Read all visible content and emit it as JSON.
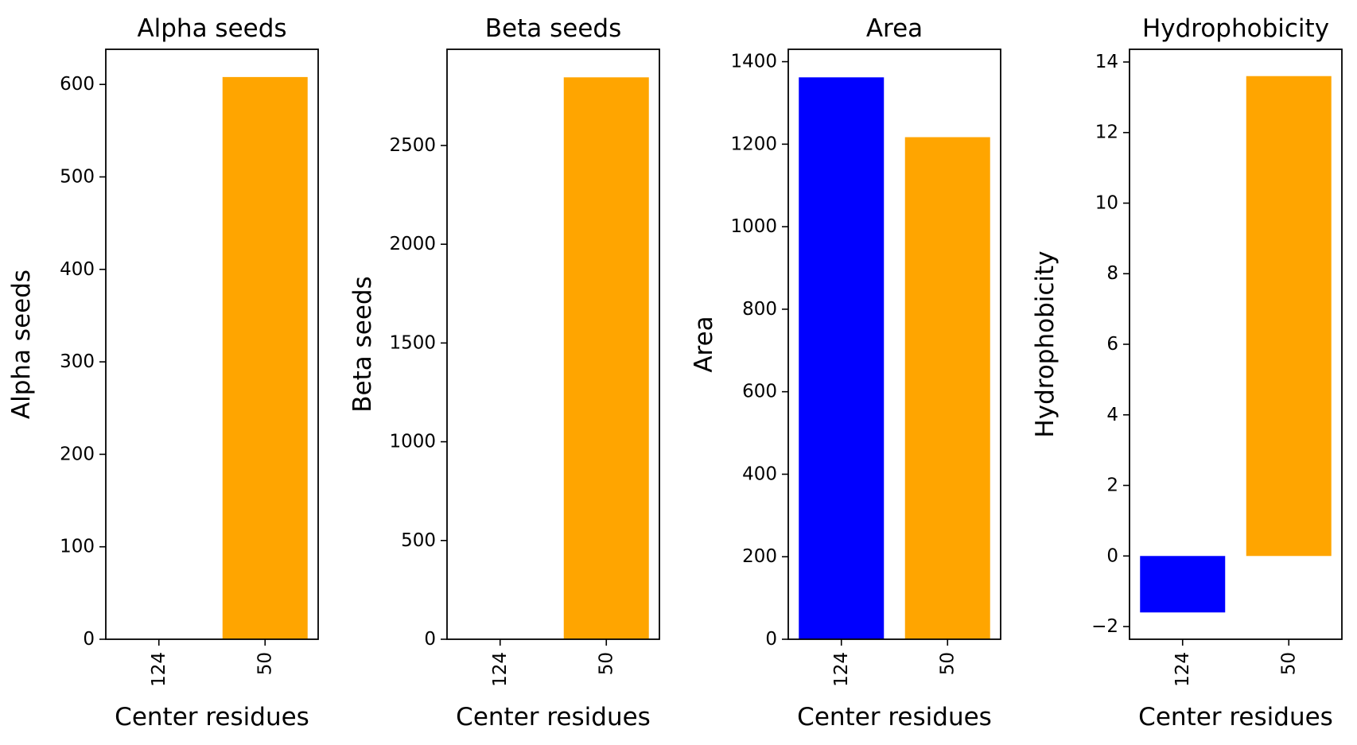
{
  "chart_data": [
    {
      "type": "bar",
      "title": "Alpha seeds",
      "xlabel": "Center residues",
      "ylabel": "Alpha seeds",
      "categories": [
        "124",
        "50"
      ],
      "values": [
        0,
        608
      ],
      "colors": [
        "#0000ff",
        "#ffa500"
      ],
      "ylim": [
        0,
        638
      ],
      "yticks": [
        0,
        100,
        200,
        300,
        400,
        500,
        600
      ],
      "ytick_labels": [
        "0",
        "100",
        "200",
        "300",
        "400",
        "500",
        "600"
      ],
      "grid": false
    },
    {
      "type": "bar",
      "title": "Beta seeds",
      "xlabel": "Center residues",
      "ylabel": "Beta seeds",
      "categories": [
        "124",
        "50"
      ],
      "values": [
        0,
        2845
      ],
      "colors": [
        "#0000ff",
        "#ffa500"
      ],
      "ylim": [
        0,
        2987
      ],
      "yticks": [
        0,
        500,
        1000,
        1500,
        2000,
        2500
      ],
      "ytick_labels": [
        "0",
        "500",
        "1000",
        "1500",
        "2000",
        "2500"
      ],
      "grid": false
    },
    {
      "type": "bar",
      "title": "Area",
      "xlabel": "Center residues",
      "ylabel": "Area",
      "categories": [
        "124",
        "50"
      ],
      "values": [
        1362,
        1217
      ],
      "colors": [
        "#0000ff",
        "#ffa500"
      ],
      "ylim": [
        0,
        1430
      ],
      "yticks": [
        0,
        200,
        400,
        600,
        800,
        1000,
        1200,
        1400
      ],
      "ytick_labels": [
        "0",
        "200",
        "400",
        "600",
        "800",
        "1000",
        "1200",
        "1400"
      ],
      "grid": false
    },
    {
      "type": "bar",
      "title": "Hydrophobicity",
      "xlabel": "Center residues",
      "ylabel": "Hydrophobicity",
      "categories": [
        "124",
        "50"
      ],
      "values": [
        -1.6,
        13.6
      ],
      "colors": [
        "#0000ff",
        "#ffa500"
      ],
      "ylim": [
        -2.36,
        14.36
      ],
      "yticks": [
        -2,
        0,
        2,
        4,
        6,
        8,
        10,
        12,
        14
      ],
      "ytick_labels": [
        "−2",
        "0",
        "2",
        "4",
        "6",
        "8",
        "10",
        "12",
        "14"
      ],
      "grid": false
    }
  ]
}
